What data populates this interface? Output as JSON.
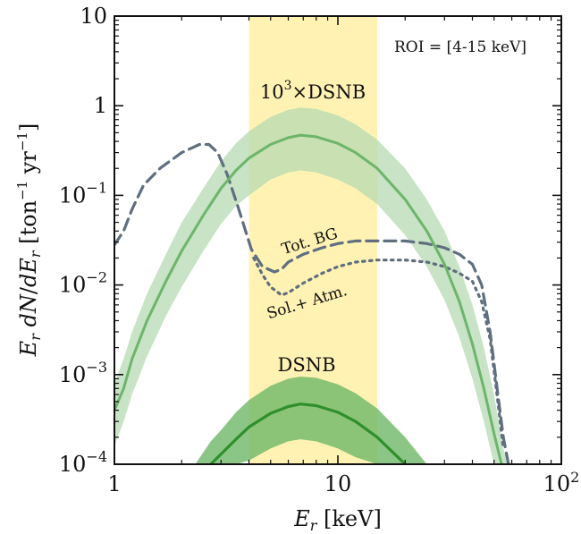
{
  "chart_data": {
    "type": "line",
    "x_scale": "log",
    "y_scale": "log",
    "xlim": [
      1,
      100
    ],
    "ylim": [
      0.0001,
      10
    ],
    "xlabel": "E_r [keV]",
    "ylabel": "E_r dN/dE_r [ton^-1 yr^-1]",
    "x_ticks": [
      {
        "value": 1,
        "base": "1",
        "exp": ""
      },
      {
        "value": 10,
        "base": "10",
        "exp": ""
      },
      {
        "value": 100,
        "base": "10",
        "exp": "2"
      }
    ],
    "y_ticks": [
      {
        "value": 10,
        "base": "10",
        "exp": ""
      },
      {
        "value": 1,
        "base": "1",
        "exp": ""
      },
      {
        "value": 0.1,
        "base": "10",
        "exp": "−1"
      },
      {
        "value": 0.01,
        "base": "10",
        "exp": "−2"
      },
      {
        "value": 0.001,
        "base": "10",
        "exp": "−3"
      },
      {
        "value": 0.0001,
        "base": "10",
        "exp": "−4"
      }
    ],
    "roi": {
      "x_min": 4,
      "x_max": 15,
      "color": "#fff2b3"
    },
    "annotations": {
      "roi_label": "ROI = [4-15 keV]",
      "dsnb_scaled_label": "10",
      "dsnb_scaled_exp": "3",
      "dsnb_scaled_suffix": "×DSNB",
      "dsnb_label": "DSNB",
      "tot_bg_label": "Tot. BG",
      "sol_atm_label": "Sol.+ Atm."
    },
    "colors": {
      "scaled_dsnb": "#6db56b",
      "scaled_dsnb_band": "#b5d9b2",
      "dsnb": "#2f8f2c",
      "dsnb_band": "#6fb868",
      "background": "#5f6f80"
    },
    "series": [
      {
        "key": "tot_bg",
        "style": "dashed",
        "x": [
          1.0,
          1.1,
          1.2,
          1.35,
          1.6,
          2.0,
          2.4,
          2.65,
          2.9,
          3.2,
          3.6,
          4.1,
          4.6,
          5.2,
          5.6,
          6.0,
          7.0,
          8.5,
          10,
          12,
          15,
          20,
          25,
          30,
          35,
          40,
          44,
          48,
          52,
          55,
          58,
          60
        ],
        "y": [
          0.028,
          0.04,
          0.07,
          0.13,
          0.2,
          0.3,
          0.37,
          0.37,
          0.3,
          0.17,
          0.07,
          0.025,
          0.016,
          0.014,
          0.015,
          0.018,
          0.022,
          0.026,
          0.029,
          0.031,
          0.031,
          0.031,
          0.029,
          0.026,
          0.022,
          0.017,
          0.01,
          0.003,
          0.0006,
          0.0002,
          0.0001,
          0.0001
        ]
      },
      {
        "key": "sol_atm",
        "style": "dotted",
        "x": [
          4.2,
          4.6,
          5.0,
          5.6,
          6.0,
          7.0,
          8.5,
          10,
          12,
          15,
          20,
          25,
          30,
          35,
          40,
          44,
          48,
          52,
          55
        ],
        "y": [
          0.02,
          0.013,
          0.0095,
          0.0077,
          0.0082,
          0.0105,
          0.0135,
          0.016,
          0.018,
          0.019,
          0.019,
          0.018,
          0.016,
          0.0135,
          0.011,
          0.0065,
          0.0025,
          0.0005,
          0.00015
        ]
      },
      {
        "key": "scaled_dsnb",
        "style": "solid",
        "x": [
          1.0,
          1.1,
          1.2,
          1.4,
          1.7,
          2.0,
          2.5,
          3.0,
          3.5,
          4.0,
          5.0,
          6.0,
          6.8,
          8.0,
          10,
          12,
          15,
          20,
          25,
          30,
          35,
          40,
          45,
          50,
          54
        ],
        "y": [
          0.0004,
          0.0007,
          0.0015,
          0.004,
          0.011,
          0.024,
          0.06,
          0.12,
          0.19,
          0.26,
          0.37,
          0.44,
          0.47,
          0.45,
          0.38,
          0.3,
          0.2,
          0.09,
          0.04,
          0.017,
          0.0065,
          0.0022,
          0.0007,
          0.00022,
          0.0001
        ]
      },
      {
        "key": "dsnb",
        "style": "solid",
        "x": [
          2.7,
          3.0,
          3.5,
          4.0,
          5.0,
          6.0,
          6.8,
          8.0,
          10,
          12,
          15,
          20
        ],
        "y": [
          0.0001,
          0.00013,
          0.00019,
          0.00026,
          0.00037,
          0.00044,
          0.00047,
          0.00045,
          0.00038,
          0.0003,
          0.0002,
          0.0001
        ]
      }
    ],
    "bands": [
      {
        "key": "scaled_dsnb_band",
        "x": [
          1.0,
          1.1,
          1.2,
          1.4,
          1.7,
          2.0,
          2.5,
          3.0,
          3.5,
          4.0,
          5.0,
          6.0,
          6.8,
          8.0,
          10,
          12,
          15,
          20,
          25,
          30,
          35,
          40,
          45,
          50,
          55,
          58
        ],
        "y_low": [
          0.00016,
          0.0003,
          0.0006,
          0.0016,
          0.0045,
          0.0095,
          0.024,
          0.048,
          0.076,
          0.1,
          0.15,
          0.18,
          0.19,
          0.18,
          0.15,
          0.12,
          0.08,
          0.036,
          0.016,
          0.0068,
          0.0026,
          0.0009,
          0.0003,
          0.0001,
          0.0001,
          0.0001
        ],
        "y_high": [
          0.0008,
          0.0015,
          0.003,
          0.008,
          0.022,
          0.05,
          0.12,
          0.24,
          0.38,
          0.52,
          0.75,
          0.9,
          0.95,
          0.92,
          0.78,
          0.62,
          0.42,
          0.2,
          0.09,
          0.04,
          0.016,
          0.006,
          0.002,
          0.0006,
          0.00015,
          0.0001
        ]
      },
      {
        "key": "dsnb_band",
        "x": [
          2.3,
          2.7,
          3.0,
          3.5,
          4.0,
          5.0,
          6.0,
          6.8,
          8.0,
          10,
          12,
          15,
          20,
          25,
          28
        ],
        "y_low": [
          0.0001,
          0.0001,
          0.0001,
          0.0001,
          0.00011,
          0.00015,
          0.00018,
          0.00019,
          0.00018,
          0.00015,
          0.00012,
          0.0001,
          0.0001,
          0.0001,
          0.0001
        ],
        "y_high": [
          0.0001,
          0.00018,
          0.00024,
          0.00038,
          0.00052,
          0.00075,
          0.0009,
          0.00095,
          0.00092,
          0.00078,
          0.00062,
          0.00042,
          0.0002,
          0.0001,
          0.0001
        ]
      }
    ]
  }
}
